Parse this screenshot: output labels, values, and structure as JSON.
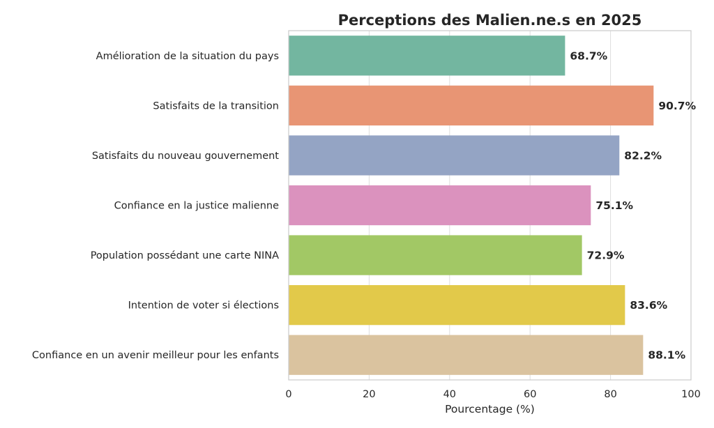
{
  "chart_data": {
    "type": "bar",
    "orientation": "horizontal",
    "title": "Perceptions des Malien.ne.s en 2025",
    "xlabel": "Pourcentage (%)",
    "ylabel": "",
    "xlim": [
      0,
      100
    ],
    "xticks": [
      "0",
      "20",
      "40",
      "60",
      "80",
      "100"
    ],
    "grid": "vertical",
    "categories": [
      "Amélioration de la situation du pays",
      "Satisfaits de la transition",
      "Satisfaits du nouveau gouvernement",
      "Confiance en la justice malienne",
      "Population possédant une carte NINA",
      "Intention de voter si élections",
      "Confiance en un avenir meilleur pour les enfants"
    ],
    "values": [
      68.7,
      90.7,
      82.2,
      75.1,
      72.9,
      83.6,
      88.1
    ],
    "value_labels": [
      "68.7%",
      "90.7%",
      "82.2%",
      "75.1%",
      "72.9%",
      "83.6%",
      "88.1%"
    ],
    "colors": [
      "#73b6a0",
      "#e89574",
      "#94a4c4",
      "#db92be",
      "#a2c865",
      "#e2c94a",
      "#dac39f"
    ]
  }
}
